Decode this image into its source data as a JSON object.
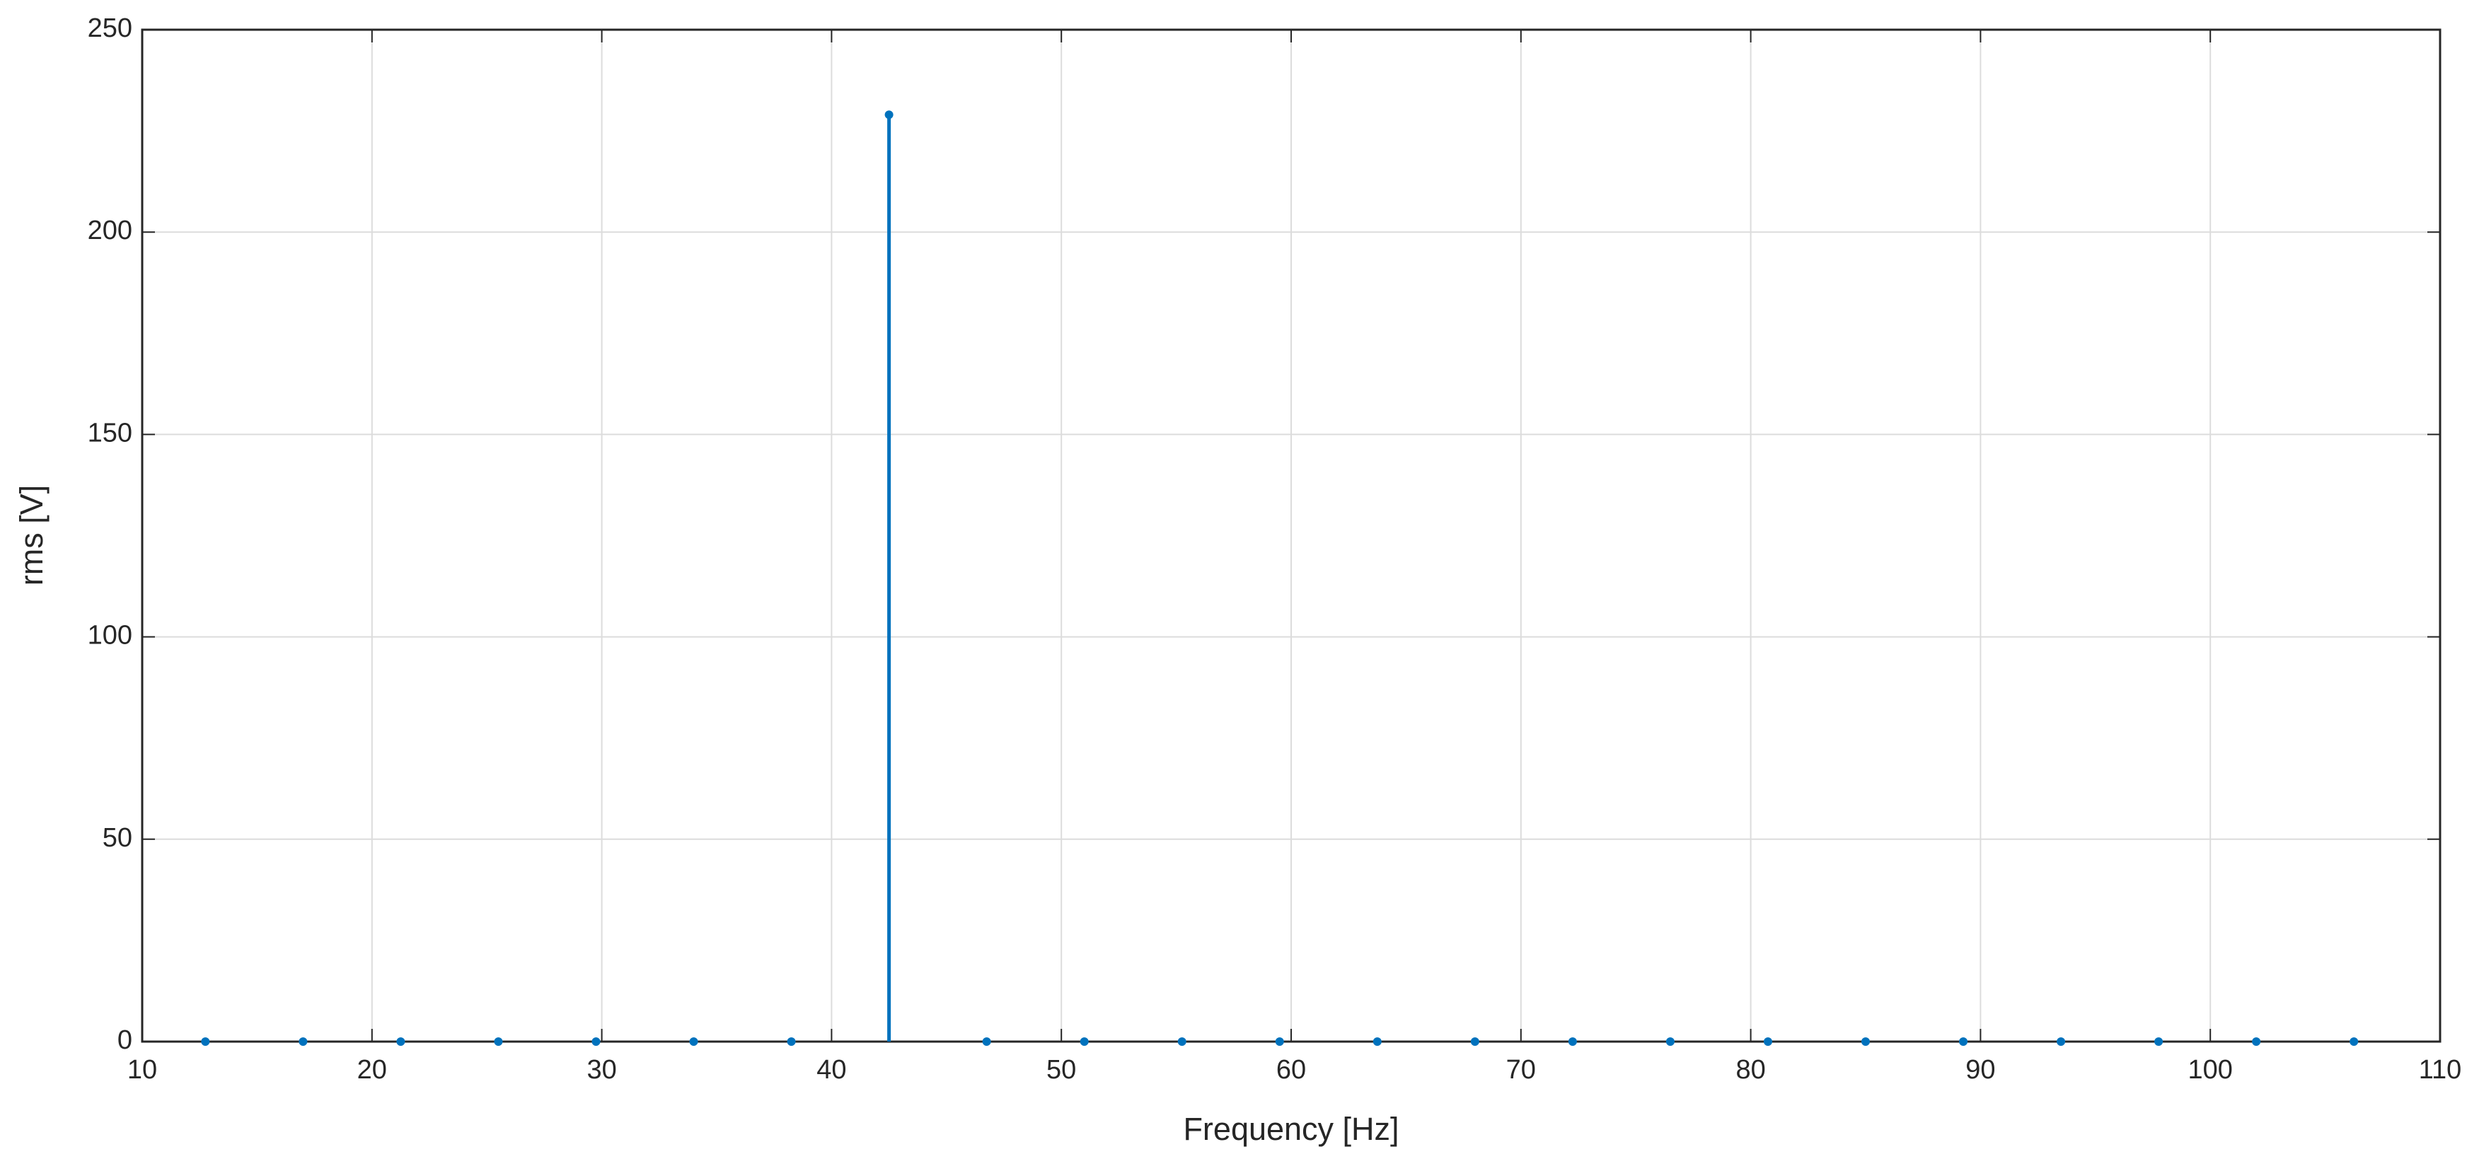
{
  "chart_data": {
    "type": "stem",
    "xlabel": "Frequency [Hz]",
    "ylabel": "rms [V]",
    "x": [
      12.75,
      17,
      21.25,
      25.5,
      29.75,
      34,
      38.25,
      42.5,
      46.75,
      51,
      55.25,
      59.5,
      63.75,
      68,
      72.25,
      76.5,
      80.75,
      85,
      89.25,
      93.5,
      97.75,
      102,
      106.25
    ],
    "values": [
      0,
      0,
      0,
      0,
      0,
      0,
      0,
      229,
      0,
      0,
      0,
      0,
      0,
      0,
      0,
      0,
      0,
      0,
      0,
      0,
      0,
      0,
      0
    ],
    "color": "#0072bd",
    "xlim": [
      10,
      110
    ],
    "xticks": [
      10,
      20,
      30,
      40,
      50,
      60,
      70,
      80,
      90,
      100,
      110
    ],
    "ylim": [
      0,
      250
    ],
    "yticks": [
      0,
      50,
      100,
      150,
      200,
      250
    ],
    "grid": true
  }
}
